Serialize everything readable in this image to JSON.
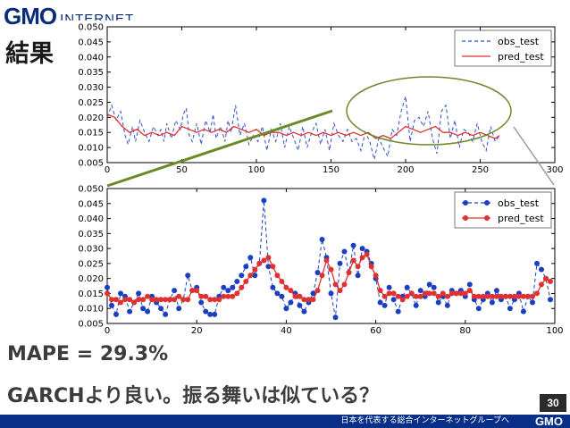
{
  "header": {
    "logo_main": "GMO",
    "logo_sub": "INTERNET",
    "title": "結果"
  },
  "chart_data": [
    {
      "type": "line",
      "xlim": [
        0,
        300
      ],
      "ylim": [
        0.005,
        0.05
      ],
      "xticks": [
        0,
        50,
        100,
        150,
        200,
        250,
        300
      ],
      "yticks": [
        "0.005",
        "0.010",
        "0.015",
        "0.020",
        "0.025",
        "0.030",
        "0.035",
        "0.040",
        "0.045",
        "0.050"
      ],
      "legend": [
        "obs_test",
        "pred_test"
      ],
      "series": [
        {
          "name": "obs_test",
          "color": "#3050c8",
          "style": "dashed",
          "x": [
            0,
            3,
            6,
            9,
            12,
            14,
            17,
            19,
            22,
            25,
            28,
            31,
            34,
            36,
            38,
            40,
            43,
            46,
            49,
            51,
            53,
            55,
            57,
            60,
            63,
            66,
            69,
            71,
            73,
            76,
            79,
            81,
            83,
            86,
            89,
            92,
            95,
            98,
            101,
            104,
            107,
            110,
            113,
            116,
            119,
            122,
            125,
            128,
            131,
            134,
            137,
            140,
            143,
            146,
            149,
            152,
            155,
            158,
            161,
            164,
            167,
            170,
            173,
            176,
            179,
            182,
            185,
            188,
            191,
            194,
            197,
            200,
            203,
            206,
            209,
            212,
            215,
            218,
            221,
            224,
            227,
            230,
            233,
            236,
            239,
            242,
            245,
            248,
            251,
            254,
            257,
            260,
            263
          ],
          "y": [
            0.02,
            0.024,
            0.019,
            0.022,
            0.014,
            0.011,
            0.017,
            0.012,
            0.019,
            0.015,
            0.012,
            0.017,
            0.014,
            0.016,
            0.012,
            0.018,
            0.013,
            0.019,
            0.016,
            0.021,
            0.023,
            0.014,
            0.012,
            0.018,
            0.011,
            0.019,
            0.015,
            0.021,
            0.013,
            0.017,
            0.012,
            0.019,
            0.015,
            0.024,
            0.014,
            0.018,
            0.011,
            0.014,
            0.012,
            0.017,
            0.009,
            0.016,
            0.012,
            0.018,
            0.01,
            0.017,
            0.013,
            0.009,
            0.017,
            0.01,
            0.015,
            0.018,
            0.011,
            0.016,
            0.009,
            0.018,
            0.014,
            0.012,
            0.016,
            0.012,
            0.013,
            0.009,
            0.015,
            0.012,
            0.006,
            0.013,
            0.01,
            0.007,
            0.016,
            0.014,
            0.022,
            0.027,
            0.012,
            0.019,
            0.02,
            0.017,
            0.022,
            0.013,
            0.008,
            0.022,
            0.024,
            0.013,
            0.019,
            0.01,
            0.016,
            0.015,
            0.012,
            0.018,
            0.012,
            0.009,
            0.017,
            0.012,
            0.014
          ]
        },
        {
          "name": "pred_test",
          "color": "#e03030",
          "style": "solid",
          "x": [
            0,
            5,
            10,
            15,
            20,
            25,
            30,
            35,
            40,
            45,
            50,
            55,
            60,
            65,
            70,
            75,
            80,
            85,
            90,
            95,
            100,
            105,
            110,
            115,
            120,
            125,
            130,
            135,
            140,
            145,
            150,
            155,
            160,
            165,
            170,
            175,
            180,
            185,
            190,
            195,
            200,
            205,
            210,
            215,
            220,
            225,
            230,
            235,
            240,
            245,
            250,
            255,
            260,
            263
          ],
          "y": [
            0.021,
            0.02,
            0.017,
            0.015,
            0.016,
            0.014,
            0.015,
            0.014,
            0.015,
            0.014,
            0.017,
            0.016,
            0.015,
            0.016,
            0.015,
            0.016,
            0.015,
            0.017,
            0.016,
            0.015,
            0.016,
            0.014,
            0.015,
            0.015,
            0.014,
            0.015,
            0.014,
            0.015,
            0.014,
            0.015,
            0.014,
            0.015,
            0.014,
            0.015,
            0.014,
            0.015,
            0.013,
            0.014,
            0.013,
            0.015,
            0.017,
            0.016,
            0.015,
            0.016,
            0.017,
            0.015,
            0.015,
            0.014,
            0.015,
            0.014,
            0.015,
            0.014,
            0.013,
            0.014
          ]
        }
      ]
    },
    {
      "type": "line",
      "xlim": [
        0,
        100
      ],
      "ylim": [
        0.005,
        0.05
      ],
      "xticks": [
        0,
        20,
        40,
        60,
        80,
        100
      ],
      "yticks": [
        "0.005",
        "0.010",
        "0.015",
        "0.020",
        "0.025",
        "0.030",
        "0.035",
        "0.040",
        "0.045",
        "0.050"
      ],
      "legend": [
        "obs_test",
        "pred_test"
      ],
      "series": [
        {
          "name": "obs_test",
          "color": "#1a3fc0",
          "style": "dashed-markers",
          "x": [
            0,
            1,
            2,
            3,
            4,
            5,
            6,
            7,
            8,
            9,
            10,
            11,
            12,
            13,
            14,
            15,
            16,
            17,
            18,
            19,
            20,
            21,
            22,
            23,
            24,
            25,
            26,
            27,
            28,
            29,
            30,
            31,
            32,
            33,
            34,
            35,
            36,
            37,
            38,
            39,
            40,
            41,
            42,
            43,
            44,
            45,
            46,
            47,
            48,
            49,
            50,
            51,
            52,
            53,
            54,
            55,
            56,
            57,
            58,
            59,
            60,
            61,
            62,
            63,
            64,
            65,
            66,
            67,
            68,
            69,
            70,
            71,
            72,
            73,
            74,
            75,
            76,
            77,
            78,
            79,
            80,
            81,
            82,
            83,
            84,
            85,
            86,
            87,
            88,
            89,
            90,
            91,
            92,
            93,
            94,
            95,
            96,
            97,
            98,
            99
          ],
          "y": [
            0.017,
            0.011,
            0.008,
            0.015,
            0.014,
            0.009,
            0.012,
            0.015,
            0.01,
            0.009,
            0.014,
            0.012,
            0.01,
            0.008,
            0.013,
            0.016,
            0.01,
            0.013,
            0.021,
            0.016,
            0.017,
            0.012,
            0.009,
            0.008,
            0.008,
            0.014,
            0.017,
            0.016,
            0.017,
            0.019,
            0.021,
            0.024,
            0.027,
            0.021,
            0.025,
            0.046,
            0.024,
            0.017,
            0.015,
            0.014,
            0.01,
            0.012,
            0.015,
            0.011,
            0.009,
            0.012,
            0.015,
            0.022,
            0.033,
            0.027,
            0.015,
            0.007,
            0.025,
            0.029,
            0.022,
            0.031,
            0.021,
            0.03,
            0.029,
            0.025,
            0.02,
            0.012,
            0.011,
            0.017,
            0.013,
            0.009,
            0.014,
            0.017,
            0.015,
            0.011,
            0.016,
            0.014,
            0.018,
            0.017,
            0.012,
            0.014,
            0.011,
            0.016,
            0.015,
            0.016,
            0.014,
            0.018,
            0.013,
            0.01,
            0.013,
            0.015,
            0.012,
            0.016,
            0.013,
            0.014,
            0.01,
            0.013,
            0.015,
            0.009,
            0.014,
            0.012,
            0.025,
            0.023,
            0.02,
            0.013
          ]
        },
        {
          "name": "pred_test",
          "color": "#e03030",
          "style": "solid-markers",
          "x": [
            0,
            1,
            2,
            3,
            4,
            5,
            6,
            7,
            8,
            9,
            10,
            11,
            12,
            13,
            14,
            15,
            16,
            17,
            18,
            19,
            20,
            21,
            22,
            23,
            24,
            25,
            26,
            27,
            28,
            29,
            30,
            31,
            32,
            33,
            34,
            35,
            36,
            37,
            38,
            39,
            40,
            41,
            42,
            43,
            44,
            45,
            46,
            47,
            48,
            49,
            50,
            51,
            52,
            53,
            54,
            55,
            56,
            57,
            58,
            59,
            60,
            61,
            62,
            63,
            64,
            65,
            66,
            67,
            68,
            69,
            70,
            71,
            72,
            73,
            74,
            75,
            76,
            77,
            78,
            79,
            80,
            81,
            82,
            83,
            84,
            85,
            86,
            87,
            88,
            89,
            90,
            91,
            92,
            93,
            94,
            95,
            96,
            97,
            98,
            99
          ],
          "y": [
            0.015,
            0.013,
            0.013,
            0.012,
            0.013,
            0.013,
            0.012,
            0.013,
            0.013,
            0.014,
            0.013,
            0.013,
            0.013,
            0.013,
            0.013,
            0.013,
            0.014,
            0.013,
            0.013,
            0.016,
            0.016,
            0.014,
            0.014,
            0.013,
            0.013,
            0.013,
            0.014,
            0.014,
            0.014,
            0.015,
            0.017,
            0.019,
            0.021,
            0.023,
            0.025,
            0.026,
            0.027,
            0.024,
            0.021,
            0.019,
            0.017,
            0.016,
            0.014,
            0.014,
            0.013,
            0.013,
            0.013,
            0.016,
            0.021,
            0.026,
            0.023,
            0.018,
            0.016,
            0.018,
            0.022,
            0.026,
            0.024,
            0.027,
            0.028,
            0.024,
            0.021,
            0.016,
            0.014,
            0.015,
            0.015,
            0.014,
            0.013,
            0.014,
            0.015,
            0.014,
            0.014,
            0.015,
            0.015,
            0.015,
            0.014,
            0.015,
            0.014,
            0.015,
            0.015,
            0.015,
            0.015,
            0.016,
            0.014,
            0.014,
            0.014,
            0.014,
            0.014,
            0.014,
            0.014,
            0.014,
            0.014,
            0.014,
            0.014,
            0.014,
            0.014,
            0.014,
            0.015,
            0.018,
            0.02,
            0.019
          ]
        }
      ]
    }
  ],
  "metric": "MAPE = 29.3%",
  "comment": "GARCHより良い。振る舞いは似ている？",
  "page_number": "30",
  "footer": {
    "tagline": "日本を代表する総合インターネットグループへ",
    "logo": "GMO"
  }
}
